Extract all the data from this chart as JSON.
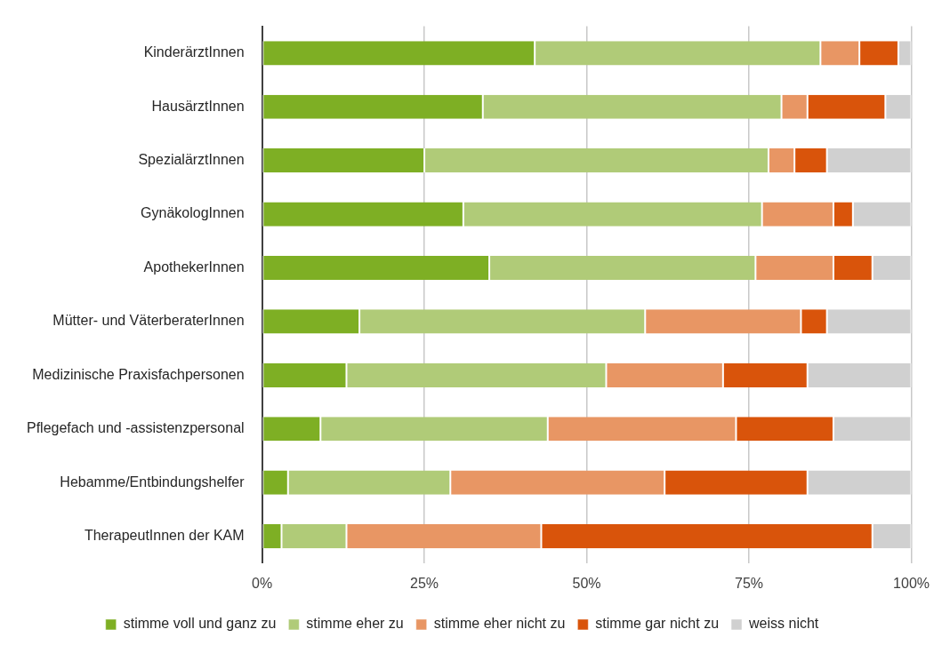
{
  "chart_data": {
    "type": "bar",
    "orientation": "horizontal",
    "stacked": true,
    "categories": [
      "KinderärztInnen",
      "HausärztInnen",
      "SpezialärztInnen",
      "GynäkologInnen",
      "ApothekerInnen",
      "Mütter- und VäterberaterInnen",
      "Medizinische Praxisfachpersonen",
      "Pflegefach und -assistenzpersonal",
      "Hebamme/Entbindungshelfer",
      "TherapeutInnen der KAM"
    ],
    "series": [
      {
        "name": "stimme voll und ganz zu",
        "color": "#7eaf24",
        "values": [
          42,
          34,
          25,
          31,
          35,
          15,
          13,
          9,
          4,
          3
        ]
      },
      {
        "name": "stimme eher zu",
        "color": "#b0cb78",
        "values": [
          44,
          46,
          53,
          46,
          41,
          44,
          40,
          35,
          25,
          10
        ]
      },
      {
        "name": "stimme eher nicht zu",
        "color": "#e89664",
        "values": [
          6,
          4,
          4,
          11,
          12,
          24,
          18,
          29,
          33,
          30
        ]
      },
      {
        "name": "stimme gar nicht zu",
        "color": "#d9540b",
        "values": [
          6,
          12,
          5,
          3,
          6,
          4,
          13,
          15,
          22,
          51
        ]
      },
      {
        "name": "weiss nicht",
        "color": "#d0d0d0",
        "values": [
          2,
          4,
          13,
          9,
          6,
          13,
          16,
          12,
          16,
          6
        ]
      }
    ],
    "xlim": [
      0,
      100
    ],
    "xticks": [
      {
        "value": 0,
        "label": "0%"
      },
      {
        "value": 25,
        "label": "25%"
      },
      {
        "value": 50,
        "label": "50%"
      },
      {
        "value": 75,
        "label": "75%"
      },
      {
        "value": 100,
        "label": "100%"
      }
    ],
    "grid": "x",
    "legend": "bottom"
  }
}
